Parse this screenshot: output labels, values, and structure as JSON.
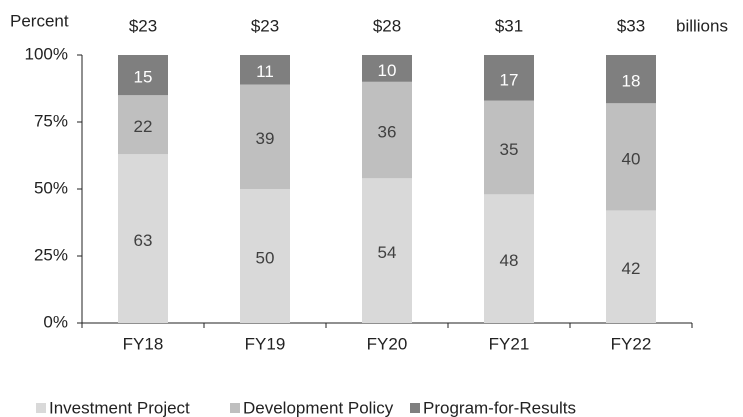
{
  "chart_data": {
    "type": "stacked_bar",
    "y_label": "Percent",
    "categories": [
      "FY18",
      "FY19",
      "FY20",
      "FY21",
      "FY22"
    ],
    "series": [
      {
        "name": "Investment Project",
        "color": "#d9d9d9",
        "values": [
          63,
          50,
          54,
          48,
          42
        ]
      },
      {
        "name": "Development Policy",
        "color": "#bfbfbf",
        "values": [
          22,
          39,
          36,
          35,
          40
        ]
      },
      {
        "name": "Program-for-Results",
        "color": "#7f7f7f",
        "values": [
          15,
          11,
          10,
          17,
          18
        ]
      }
    ],
    "totals": {
      "label": "billions",
      "values": [
        23,
        23,
        28,
        31,
        33
      ],
      "value_labels": [
        "$23",
        "$23",
        "$28",
        "$31",
        "$33"
      ]
    },
    "ylim": [
      0,
      100
    ],
    "yticks": [
      {
        "value": 0,
        "label": "0%"
      },
      {
        "value": 25,
        "label": "25%"
      },
      {
        "value": 50,
        "label": "50%"
      },
      {
        "value": 75,
        "label": "75%"
      },
      {
        "value": 100,
        "label": "100%"
      }
    ],
    "grid": false,
    "legend": "bottom"
  }
}
